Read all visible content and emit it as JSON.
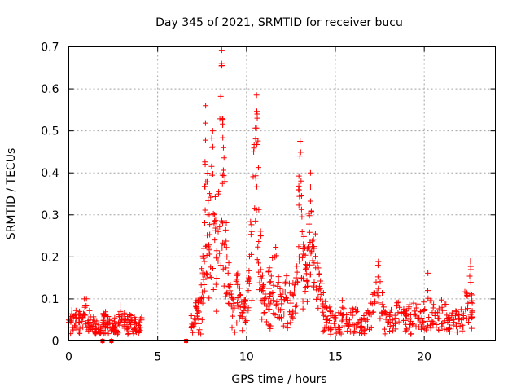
{
  "chart_data": {
    "type": "scatter",
    "title": "Day 345 of 2021, SRMTID for receiver bucu",
    "xlabel": "GPS time / hours",
    "ylabel": "SRMTID / TECUs",
    "xlim": [
      0,
      24
    ],
    "ylim": [
      0,
      0.7
    ],
    "x_ticks": [
      0,
      5,
      10,
      15,
      20
    ],
    "x_tick_labels": [
      "0",
      "5",
      "10",
      "15",
      "20"
    ],
    "y_ticks": [
      0,
      0.1,
      0.2,
      0.3,
      0.4,
      0.5,
      0.6,
      0.7
    ],
    "y_tick_labels": [
      "0",
      "0.1",
      "0.2",
      "0.3",
      "0.4",
      "0.5",
      "0.6",
      "0.7"
    ],
    "grid": true,
    "marker": "+",
    "color": "#ff0000",
    "series": [
      {
        "name": "SRMTID",
        "x": [
          0.0,
          0.3,
          0.6,
          0.9,
          1.2,
          1.5,
          1.8,
          2.0,
          2.3,
          2.6,
          2.9,
          3.2,
          3.5,
          3.8,
          4.1,
          6.6,
          6.9,
          7.2,
          7.4,
          7.6,
          7.7,
          7.9,
          8.1,
          8.3,
          8.6,
          8.7,
          8.9,
          9.2,
          9.5,
          9.8,
          10.1,
          10.4,
          10.6,
          10.8,
          11.0,
          11.3,
          11.6,
          11.9,
          12.2,
          12.5,
          12.8,
          13.0,
          13.2,
          13.4,
          13.6,
          13.8,
          14.1,
          14.4,
          14.7,
          15.0,
          15.4,
          15.8,
          16.2,
          16.6,
          17.0,
          17.4,
          17.8,
          18.2,
          18.6,
          19.0,
          19.4,
          19.8,
          20.2,
          20.6,
          21.0,
          21.4,
          21.8,
          22.2,
          22.6,
          22.7
        ],
        "y": [
          0.05,
          0.06,
          0.07,
          0.08,
          0.05,
          0.04,
          0.03,
          0.06,
          0.05,
          0.04,
          0.07,
          0.05,
          0.06,
          0.04,
          0.05,
          0.0,
          0.06,
          0.08,
          0.1,
          0.22,
          0.56,
          0.3,
          0.5,
          0.2,
          0.66,
          0.46,
          0.2,
          0.1,
          0.16,
          0.08,
          0.12,
          0.45,
          0.54,
          0.25,
          0.1,
          0.14,
          0.2,
          0.11,
          0.14,
          0.09,
          0.15,
          0.44,
          0.23,
          0.18,
          0.4,
          0.22,
          0.16,
          0.08,
          0.07,
          0.06,
          0.08,
          0.05,
          0.07,
          0.06,
          0.09,
          0.18,
          0.07,
          0.05,
          0.08,
          0.06,
          0.09,
          0.07,
          0.12,
          0.06,
          0.08,
          0.05,
          0.07,
          0.06,
          0.19,
          0.09
        ],
        "zero_x": [
          1.9,
          2.4,
          6.6
        ]
      }
    ]
  }
}
